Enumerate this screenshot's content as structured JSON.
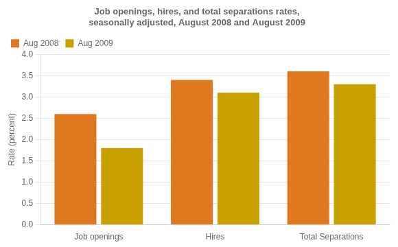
{
  "chart_data": {
    "type": "bar",
    "title": "Job openings, hires, and total separations rates,\nseasonally adjusted, August 2008 and August 2009",
    "categories": [
      "Job openings",
      "Hires",
      "Total Separations"
    ],
    "series": [
      {
        "name": "Aug 2008",
        "color": "#E07820",
        "values": [
          2.6,
          3.4,
          3.6
        ]
      },
      {
        "name": "Aug 2009",
        "color": "#C8A000",
        "values": [
          1.8,
          3.1,
          3.3
        ]
      }
    ],
    "ylabel": "Rate (percent)",
    "ylim": [
      0.0,
      4.0
    ],
    "yticks": [
      {
        "value": 0,
        "label": "0.0"
      },
      0.5,
      {
        "value": 1,
        "label": "1.0"
      },
      1.5,
      {
        "value": 2,
        "label": "2.0"
      },
      2.5,
      {
        "value": 3,
        "label": "3.0"
      },
      3.5,
      {
        "value": 4,
        "label": "4.0"
      }
    ],
    "grid": true,
    "legend": "upper left"
  }
}
